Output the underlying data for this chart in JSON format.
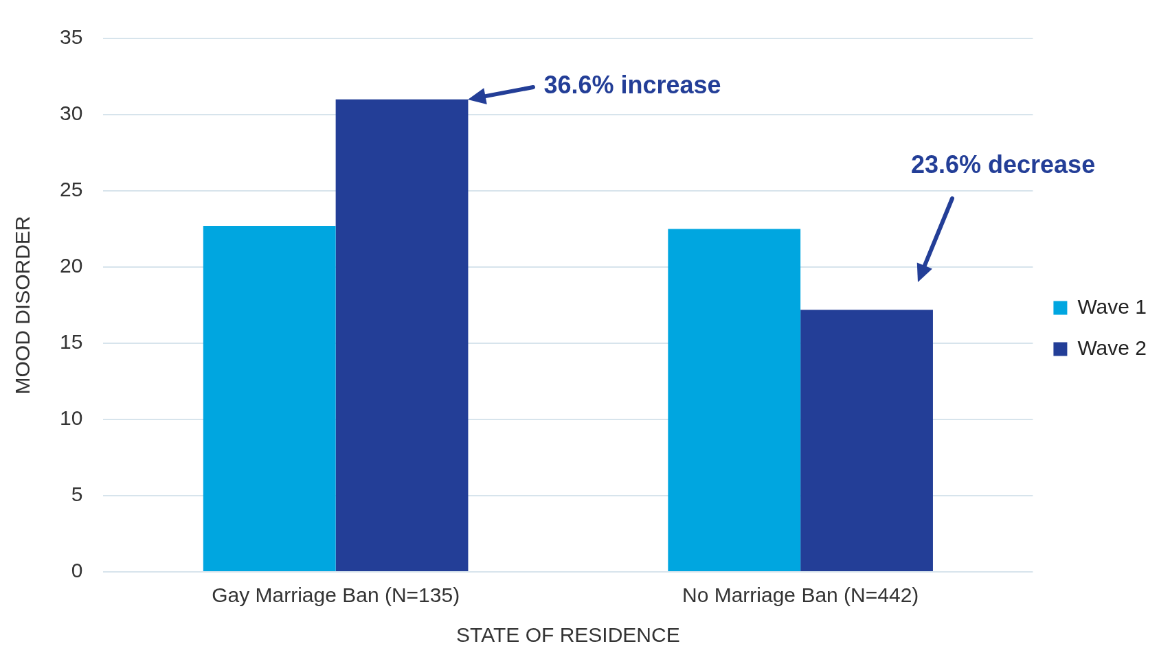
{
  "chart_data": {
    "type": "bar",
    "xlabel": "STATE OF RESIDENCE",
    "ylabel": "MOOD DISORDER",
    "categories": [
      "Gay Marriage Ban (N=135)",
      "No Marriage Ban (N=442)"
    ],
    "series": [
      {
        "name": "Wave 1",
        "color": "#00a6e0",
        "values": [
          22.7,
          22.5
        ]
      },
      {
        "name": "Wave 2",
        "color": "#233e97",
        "values": [
          31.0,
          17.2
        ]
      }
    ],
    "ylim": [
      0,
      35
    ],
    "yticks": [
      0,
      5,
      10,
      15,
      20,
      25,
      30,
      35
    ],
    "grid": "y",
    "legend": "right",
    "annotations": [
      "36.6% increase",
      "23.6% decrease"
    ]
  }
}
